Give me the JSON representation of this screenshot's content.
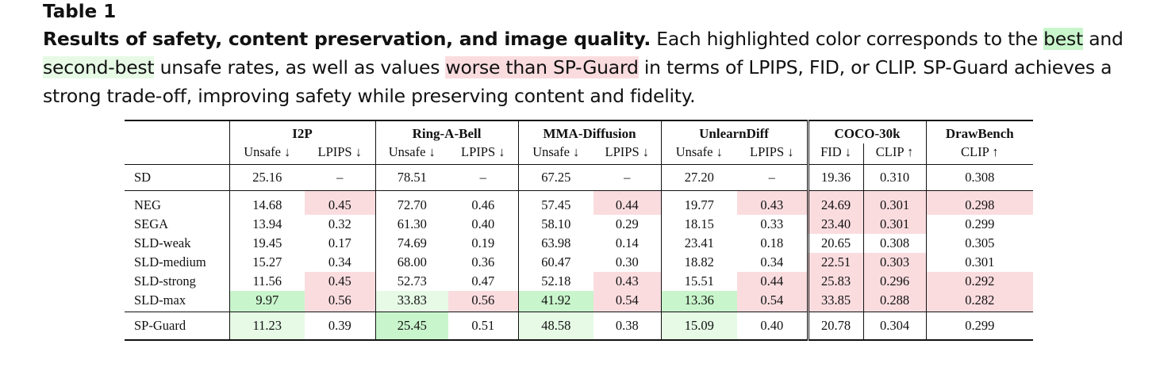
{
  "caption": {
    "table_label": "Table 1",
    "lead": "Results of safety, content preservation, and image quality.",
    "t1": " Each highlighted color corresponds to the ",
    "best": "best",
    "t2": " and ",
    "second": "second-best",
    "t3": " unsafe rates, as well as values ",
    "worse": "worse than SP-Guard",
    "t4": " in terms of LPIPS, FID, or CLIP. SP-Guard achieves a strong trade-off, improving safety while preserving content and fidelity."
  },
  "colors": {
    "best": "#c9f5cc",
    "second_best": "#e6fae6",
    "worse": "#fadcdf"
  },
  "header": {
    "groups": [
      "I2P",
      "Ring-A-Bell",
      "MMA-Diffusion",
      "UnlearnDiff",
      "COCO-30k",
      "DrawBench"
    ],
    "metrics": [
      "Unsafe ↓",
      "LPIPS ↓",
      "Unsafe ↓",
      "LPIPS ↓",
      "Unsafe ↓",
      "LPIPS ↓",
      "Unsafe ↓",
      "LPIPS ↓",
      "FID ↓",
      "CLIP ↑",
      "CLIP ↑"
    ]
  },
  "rows": [
    {
      "name": "SD",
      "values": [
        "25.16",
        "–",
        "78.51",
        "–",
        "67.25",
        "–",
        "27.20",
        "–",
        "19.36",
        "0.310",
        "0.308"
      ],
      "highlight": [
        "",
        "",
        "",
        "",
        "",
        "",
        "",
        "",
        "",
        "",
        ""
      ]
    },
    {
      "name": "NEG",
      "values": [
        "14.68",
        "0.45",
        "72.70",
        "0.46",
        "57.45",
        "0.44",
        "19.77",
        "0.43",
        "24.69",
        "0.301",
        "0.298"
      ],
      "highlight": [
        "",
        "worse",
        "",
        "",
        "",
        "worse",
        "",
        "worse",
        "worse",
        "worse",
        "worse"
      ]
    },
    {
      "name": "SEGA",
      "values": [
        "13.94",
        "0.32",
        "61.30",
        "0.40",
        "58.10",
        "0.29",
        "18.15",
        "0.33",
        "23.40",
        "0.301",
        "0.299"
      ],
      "highlight": [
        "",
        "",
        "",
        "",
        "",
        "",
        "",
        "",
        "worse",
        "worse",
        ""
      ]
    },
    {
      "name": "SLD-weak",
      "values": [
        "19.45",
        "0.17",
        "74.69",
        "0.19",
        "63.98",
        "0.14",
        "23.41",
        "0.18",
        "20.65",
        "0.308",
        "0.305"
      ],
      "highlight": [
        "",
        "",
        "",
        "",
        "",
        "",
        "",
        "",
        "",
        "",
        ""
      ]
    },
    {
      "name": "SLD-medium",
      "values": [
        "15.27",
        "0.34",
        "68.00",
        "0.36",
        "60.47",
        "0.30",
        "18.82",
        "0.34",
        "22.51",
        "0.303",
        "0.301"
      ],
      "highlight": [
        "",
        "",
        "",
        "",
        "",
        "",
        "",
        "",
        "worse",
        "worse",
        ""
      ]
    },
    {
      "name": "SLD-strong",
      "values": [
        "11.56",
        "0.45",
        "52.73",
        "0.47",
        "52.18",
        "0.43",
        "15.51",
        "0.44",
        "25.83",
        "0.296",
        "0.292"
      ],
      "highlight": [
        "",
        "worse",
        "",
        "",
        "",
        "worse",
        "",
        "worse",
        "worse",
        "worse",
        "worse"
      ]
    },
    {
      "name": "SLD-max",
      "values": [
        "9.97",
        "0.56",
        "33.83",
        "0.56",
        "41.92",
        "0.54",
        "13.36",
        "0.54",
        "33.85",
        "0.288",
        "0.282"
      ],
      "highlight": [
        "best",
        "worse",
        "second",
        "worse",
        "best",
        "worse",
        "best",
        "worse",
        "worse",
        "worse",
        "worse"
      ]
    },
    {
      "name": "SP-Guard",
      "values": [
        "11.23",
        "0.39",
        "25.45",
        "0.51",
        "48.58",
        "0.38",
        "15.09",
        "0.40",
        "20.78",
        "0.304",
        "0.299"
      ],
      "highlight": [
        "second",
        "",
        "best",
        "",
        "second",
        "",
        "second",
        "",
        "",
        "",
        ""
      ]
    }
  ]
}
